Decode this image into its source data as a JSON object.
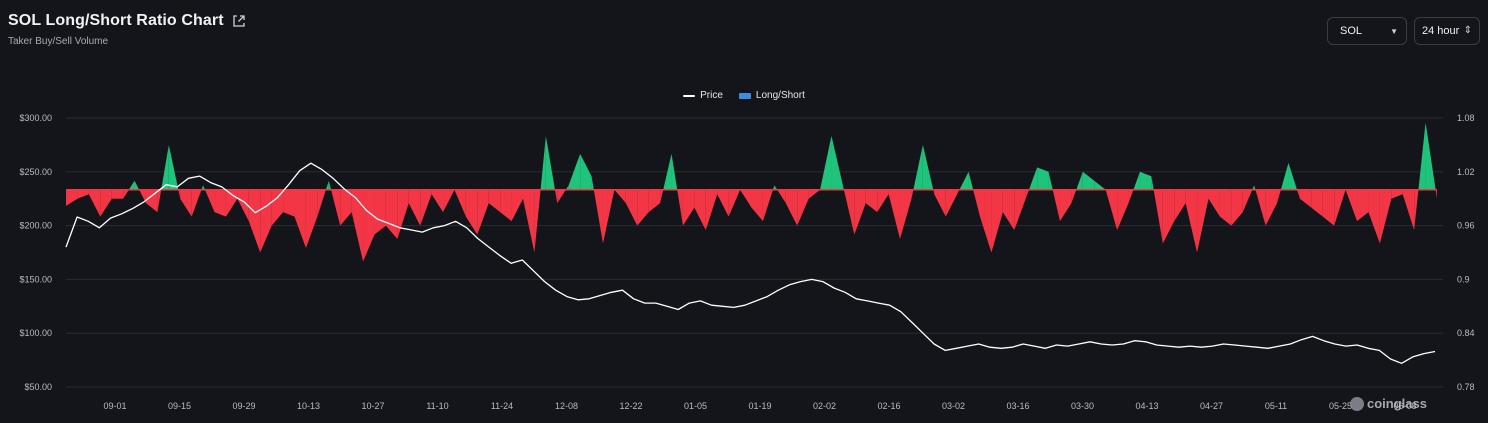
{
  "header": {
    "title": "SOL Long/Short Ratio Chart",
    "subtitle": "Taker Buy/Sell Volume"
  },
  "controls": {
    "asset": "SOL",
    "interval": "24 hour"
  },
  "legend": {
    "price_label": "Price",
    "ratio_label": "Long/Short"
  },
  "watermark": "coinglass",
  "colors": {
    "background": "#14151a",
    "long": "#1fc37c",
    "short": "#f23645",
    "price_line": "#ffffff",
    "legend_ratio": "#3b8fe0",
    "grid": "#2a2c33"
  },
  "chart_data": {
    "type": "area",
    "y_left": {
      "ticks": [
        "$300.00",
        "$250.00",
        "$200.00",
        "$150.00",
        "$100.00",
        "$50.00"
      ],
      "range": [
        50,
        300
      ]
    },
    "y_right": {
      "ticks": [
        "1.08",
        "1.02",
        "0.96",
        "0.9",
        "0.84",
        "0.78"
      ],
      "range": [
        0.78,
        1.08
      ],
      "baseline": 1.0
    },
    "x_ticks": [
      "09-01",
      "09-15",
      "09-29",
      "10-13",
      "10-27",
      "11-10",
      "11-24",
      "12-08",
      "12-22",
      "01-05",
      "01-19",
      "02-02",
      "02-16",
      "03-02",
      "03-16",
      "03-30",
      "04-13",
      "04-27",
      "05-11",
      "05-25",
      "06-08"
    ],
    "ratio_keypoints": [
      [
        0,
        0.982
      ],
      [
        1,
        0.99
      ],
      [
        2,
        0.995
      ],
      [
        3,
        0.97
      ],
      [
        4,
        0.99
      ],
      [
        5,
        0.99
      ],
      [
        6,
        1.01
      ],
      [
        7,
        0.985
      ],
      [
        8,
        0.975
      ],
      [
        9,
        1.05
      ],
      [
        10,
        0.99
      ],
      [
        11,
        0.97
      ],
      [
        12,
        1.005
      ],
      [
        13,
        0.975
      ],
      [
        14,
        0.97
      ],
      [
        15,
        0.99
      ],
      [
        16,
        0.965
      ],
      [
        17,
        0.93
      ],
      [
        18,
        0.96
      ],
      [
        19,
        0.975
      ],
      [
        20,
        0.97
      ],
      [
        21,
        0.935
      ],
      [
        22,
        0.97
      ],
      [
        23,
        1.01
      ],
      [
        24,
        0.96
      ],
      [
        25,
        0.975
      ],
      [
        26,
        0.92
      ],
      [
        27,
        0.95
      ],
      [
        28,
        0.96
      ],
      [
        29,
        0.945
      ],
      [
        30,
        0.985
      ],
      [
        31,
        0.96
      ],
      [
        32,
        0.995
      ],
      [
        33,
        0.975
      ],
      [
        34,
        1.0
      ],
      [
        35,
        0.97
      ],
      [
        36,
        0.95
      ],
      [
        37,
        0.985
      ],
      [
        38,
        0.975
      ],
      [
        39,
        0.965
      ],
      [
        40,
        0.99
      ],
      [
        41,
        0.93
      ],
      [
        42,
        1.06
      ],
      [
        43,
        0.985
      ],
      [
        44,
        1.005
      ],
      [
        45,
        1.04
      ],
      [
        46,
        1.015
      ],
      [
        47,
        0.94
      ],
      [
        48,
        1.0
      ],
      [
        49,
        0.985
      ],
      [
        50,
        0.96
      ],
      [
        51,
        0.975
      ],
      [
        52,
        0.985
      ],
      [
        53,
        1.04
      ],
      [
        54,
        0.96
      ],
      [
        55,
        0.98
      ],
      [
        56,
        0.955
      ],
      [
        57,
        0.995
      ],
      [
        58,
        0.97
      ],
      [
        59,
        1.0
      ],
      [
        60,
        0.98
      ],
      [
        61,
        0.965
      ],
      [
        62,
        1.005
      ],
      [
        63,
        0.985
      ],
      [
        64,
        0.96
      ],
      [
        65,
        0.99
      ],
      [
        66,
        1.0
      ],
      [
        67,
        1.06
      ],
      [
        68,
        1.005
      ],
      [
        69,
        0.95
      ],
      [
        70,
        0.985
      ],
      [
        71,
        0.975
      ],
      [
        72,
        0.995
      ],
      [
        73,
        0.945
      ],
      [
        74,
        0.99
      ],
      [
        75,
        1.05
      ],
      [
        76,
        0.995
      ],
      [
        77,
        0.97
      ],
      [
        78,
        0.995
      ],
      [
        79,
        1.02
      ],
      [
        80,
        0.97
      ],
      [
        81,
        0.93
      ],
      [
        82,
        0.975
      ],
      [
        83,
        0.955
      ],
      [
        84,
        0.99
      ],
      [
        85,
        1.025
      ],
      [
        86,
        1.02
      ],
      [
        87,
        0.965
      ],
      [
        88,
        0.985
      ],
      [
        89,
        1.02
      ],
      [
        90,
        1.01
      ],
      [
        91,
        1.0
      ],
      [
        92,
        0.955
      ],
      [
        93,
        0.985
      ],
      [
        94,
        1.02
      ],
      [
        95,
        1.015
      ],
      [
        96,
        0.94
      ],
      [
        97,
        0.965
      ],
      [
        98,
        0.985
      ],
      [
        99,
        0.93
      ],
      [
        100,
        0.99
      ],
      [
        101,
        0.97
      ],
      [
        102,
        0.96
      ],
      [
        103,
        0.975
      ],
      [
        104,
        1.005
      ],
      [
        105,
        0.96
      ],
      [
        106,
        0.985
      ],
      [
        107,
        1.03
      ],
      [
        108,
        0.99
      ],
      [
        109,
        0.98
      ],
      [
        110,
        0.97
      ],
      [
        111,
        0.96
      ],
      [
        112,
        1.0
      ],
      [
        113,
        0.965
      ],
      [
        114,
        0.975
      ],
      [
        115,
        0.94
      ],
      [
        116,
        0.99
      ],
      [
        117,
        0.995
      ],
      [
        118,
        0.955
      ],
      [
        119,
        1.075
      ],
      [
        120,
        0.99
      ]
    ],
    "price_keypoints": [
      [
        0,
        180
      ],
      [
        1,
        208
      ],
      [
        2,
        204
      ],
      [
        3,
        198
      ],
      [
        4,
        207
      ],
      [
        5,
        211
      ],
      [
        6,
        216
      ],
      [
        7,
        222
      ],
      [
        8,
        230
      ],
      [
        9,
        238
      ],
      [
        10,
        236
      ],
      [
        11,
        244
      ],
      [
        12,
        246
      ],
      [
        13,
        240
      ],
      [
        14,
        236
      ],
      [
        15,
        228
      ],
      [
        16,
        222
      ],
      [
        17,
        212
      ],
      [
        18,
        218
      ],
      [
        19,
        226
      ],
      [
        20,
        238
      ],
      [
        21,
        251
      ],
      [
        22,
        258
      ],
      [
        23,
        252
      ],
      [
        24,
        244
      ],
      [
        25,
        234
      ],
      [
        26,
        226
      ],
      [
        27,
        214
      ],
      [
        28,
        206
      ],
      [
        29,
        202
      ],
      [
        30,
        198
      ],
      [
        31,
        196
      ],
      [
        32,
        194
      ],
      [
        33,
        198
      ],
      [
        34,
        200
      ],
      [
        35,
        204
      ],
      [
        36,
        198
      ],
      [
        37,
        188
      ],
      [
        38,
        180
      ],
      [
        39,
        172
      ],
      [
        40,
        165
      ],
      [
        41,
        168
      ],
      [
        42,
        158
      ],
      [
        43,
        148
      ],
      [
        44,
        140
      ],
      [
        45,
        134
      ],
      [
        46,
        131
      ],
      [
        47,
        132
      ],
      [
        48,
        135
      ],
      [
        49,
        138
      ],
      [
        50,
        140
      ],
      [
        51,
        132
      ],
      [
        52,
        128
      ],
      [
        53,
        128
      ],
      [
        54,
        125
      ],
      [
        55,
        122
      ],
      [
        56,
        128
      ],
      [
        57,
        130
      ],
      [
        58,
        126
      ],
      [
        59,
        125
      ],
      [
        60,
        124
      ],
      [
        61,
        126
      ],
      [
        62,
        130
      ],
      [
        63,
        134
      ],
      [
        64,
        140
      ],
      [
        65,
        145
      ],
      [
        66,
        148
      ],
      [
        67,
        150
      ],
      [
        68,
        148
      ],
      [
        69,
        142
      ],
      [
        70,
        138
      ],
      [
        71,
        132
      ],
      [
        72,
        130
      ],
      [
        73,
        128
      ],
      [
        74,
        126
      ],
      [
        75,
        120
      ],
      [
        76,
        110
      ],
      [
        77,
        100
      ],
      [
        78,
        90
      ],
      [
        79,
        84
      ],
      [
        80,
        86
      ],
      [
        81,
        88
      ],
      [
        82,
        90
      ],
      [
        83,
        87
      ],
      [
        84,
        86
      ],
      [
        85,
        87
      ],
      [
        86,
        90
      ],
      [
        87,
        88
      ],
      [
        88,
        86
      ],
      [
        89,
        89
      ],
      [
        90,
        88
      ],
      [
        91,
        90
      ],
      [
        92,
        92
      ],
      [
        93,
        90
      ],
      [
        94,
        89
      ],
      [
        95,
        90
      ],
      [
        96,
        93
      ],
      [
        97,
        92
      ],
      [
        98,
        89
      ],
      [
        99,
        88
      ],
      [
        100,
        87
      ],
      [
        101,
        88
      ],
      [
        102,
        87
      ],
      [
        103,
        88
      ],
      [
        104,
        90
      ],
      [
        105,
        89
      ],
      [
        106,
        88
      ],
      [
        107,
        87
      ],
      [
        108,
        86
      ],
      [
        109,
        88
      ],
      [
        110,
        90
      ],
      [
        111,
        94
      ],
      [
        112,
        97
      ],
      [
        113,
        93
      ],
      [
        114,
        90
      ],
      [
        115,
        88
      ],
      [
        116,
        89
      ],
      [
        117,
        86
      ],
      [
        118,
        84
      ],
      [
        119,
        76
      ],
      [
        120,
        72
      ],
      [
        121,
        78
      ],
      [
        122,
        81
      ],
      [
        123,
        83
      ]
    ]
  }
}
